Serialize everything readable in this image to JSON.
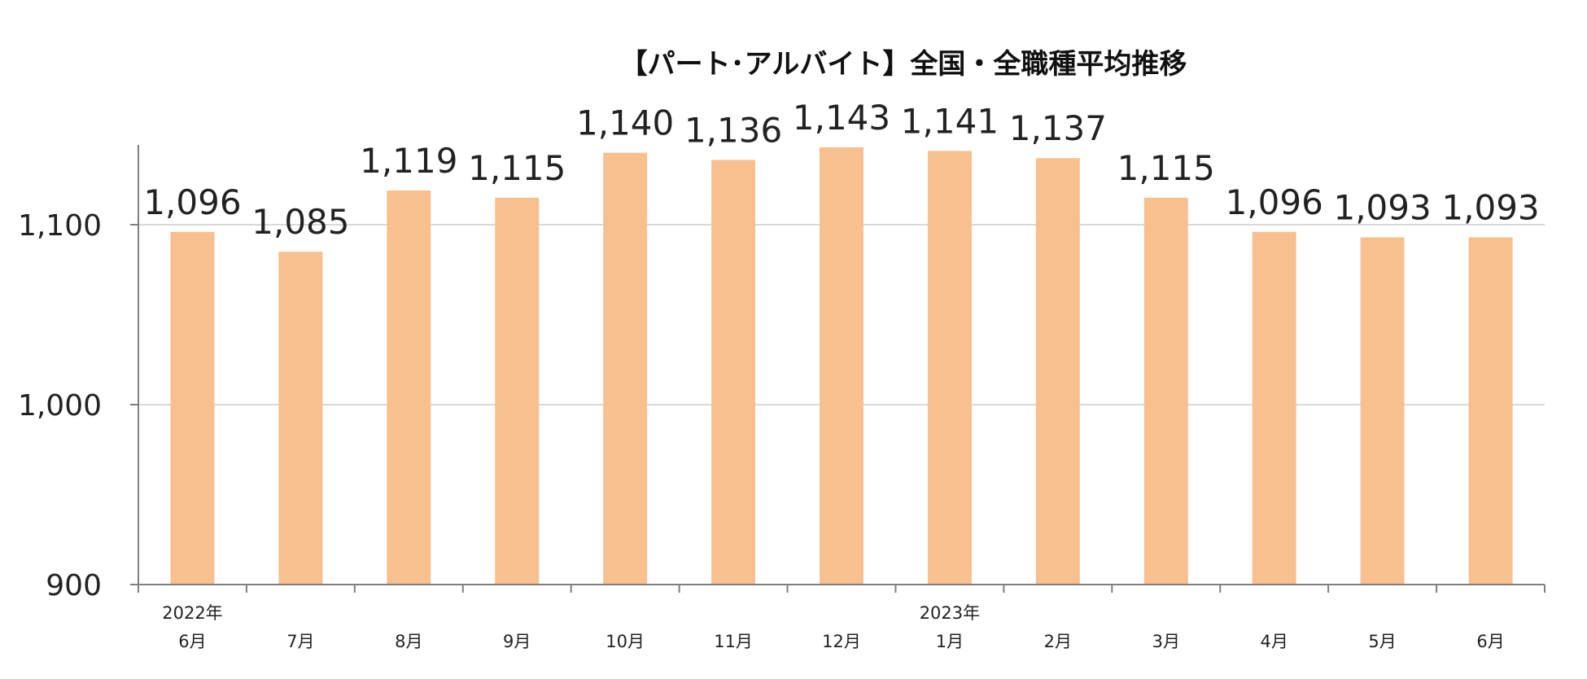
{
  "chart_data": {
    "type": "bar",
    "title": "【パート･アルバイト】全国・全職種平均推移",
    "categories": [
      "6月",
      "7月",
      "8月",
      "9月",
      "10月",
      "11月",
      "12月",
      "1月",
      "2月",
      "3月",
      "4月",
      "5月",
      "6月"
    ],
    "year_labels": [
      {
        "index": 0,
        "label": "2022年"
      },
      {
        "index": 7,
        "label": "2023年"
      }
    ],
    "values": [
      1096,
      1085,
      1119,
      1115,
      1140,
      1136,
      1143,
      1141,
      1137,
      1115,
      1096,
      1093,
      1093
    ],
    "value_labels": [
      "1,096",
      "1,085",
      "1,119",
      "1,115",
      "1,140",
      "1,136",
      "1,143",
      "1,141",
      "1,137",
      "1,115",
      "1,096",
      "1,093",
      "1,093"
    ],
    "yticks": [
      900,
      1000,
      1100
    ],
    "ytick_labels": [
      "900",
      "1,000",
      "1,100"
    ],
    "ylim": [
      900,
      1145
    ],
    "grid": true,
    "bar_color": "#F9C08F",
    "grid_color": "#D9D9D9",
    "axis_color": "#7F7F7F"
  }
}
